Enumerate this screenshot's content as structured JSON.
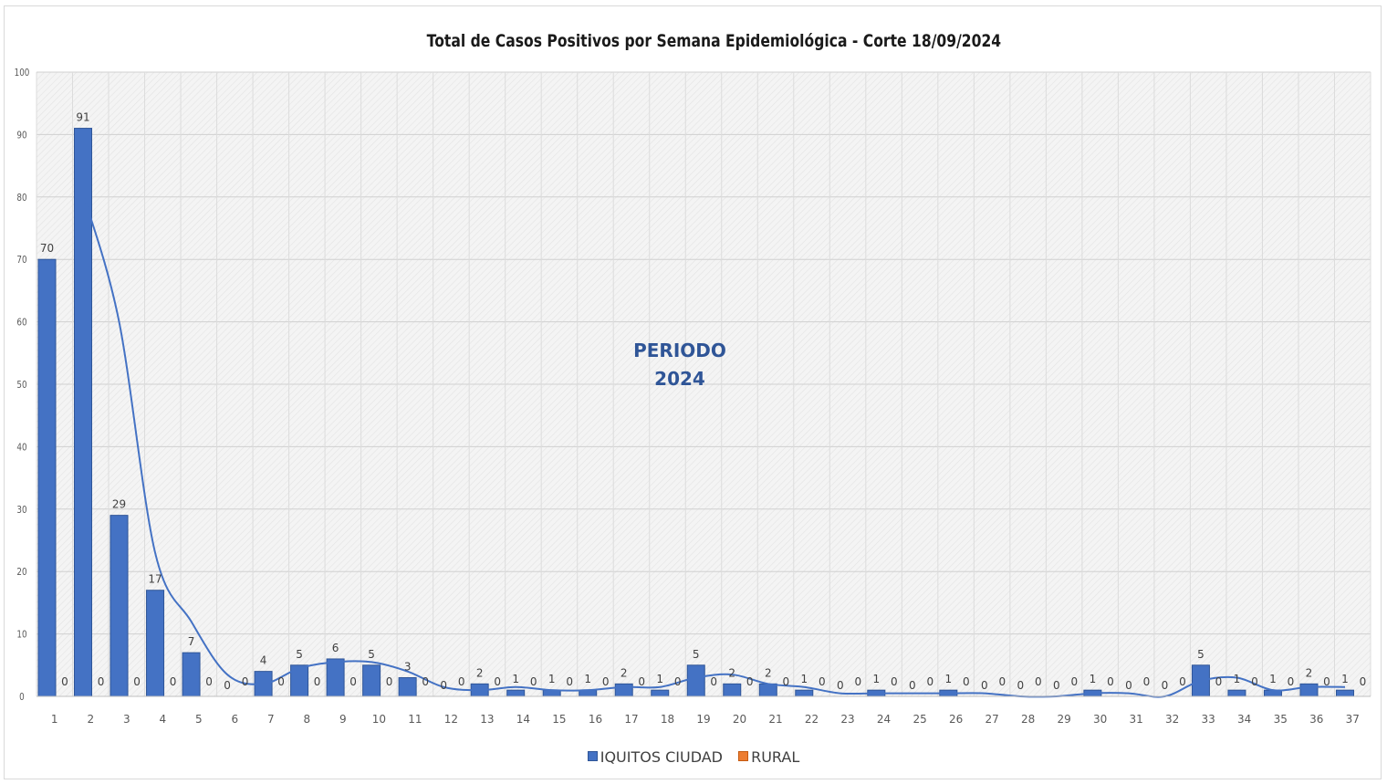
{
  "chart_data": {
    "type": "bar",
    "title": "Total de Casos Positivos por Semana Epidemiológica - Corte 18/09/2024",
    "annotation": "PERIODO\n2024",
    "xlabel": "",
    "ylabel": "",
    "ylim": [
      0,
      100
    ],
    "yticks": [
      0,
      10,
      20,
      30,
      40,
      50,
      60,
      70,
      80,
      90,
      100
    ],
    "grid": true,
    "legend_position": "bottom",
    "categories": [
      "1",
      "2",
      "3",
      "4",
      "5",
      "6",
      "7",
      "8",
      "9",
      "10",
      "11",
      "12",
      "13",
      "14",
      "15",
      "16",
      "17",
      "18",
      "19",
      "20",
      "21",
      "22",
      "23",
      "24",
      "25",
      "26",
      "27",
      "28",
      "29",
      "30",
      "31",
      "32",
      "33",
      "34",
      "35",
      "36",
      "37"
    ],
    "series": [
      {
        "name": "IQUITOS CIUDAD",
        "color": "#4472c4",
        "values": [
          70,
          91,
          29,
          17,
          7,
          0,
          4,
          5,
          6,
          5,
          3,
          0,
          2,
          1,
          1,
          1,
          2,
          1,
          5,
          2,
          2,
          1,
          0,
          1,
          0,
          1,
          0,
          0,
          0,
          1,
          0,
          0,
          5,
          1,
          1,
          2,
          1
        ]
      },
      {
        "name": "RURAL",
        "color": "#ed7d31",
        "values": [
          0,
          0,
          0,
          0,
          0,
          0,
          0,
          0,
          0,
          0,
          0,
          0,
          0,
          0,
          0,
          0,
          0,
          0,
          0,
          0,
          0,
          0,
          0,
          0,
          0,
          0,
          0,
          0,
          0,
          0,
          0,
          0,
          0,
          0,
          0,
          0,
          0
        ]
      }
    ],
    "trendline": {
      "type": "moving-average",
      "color": "#4472c4"
    }
  }
}
